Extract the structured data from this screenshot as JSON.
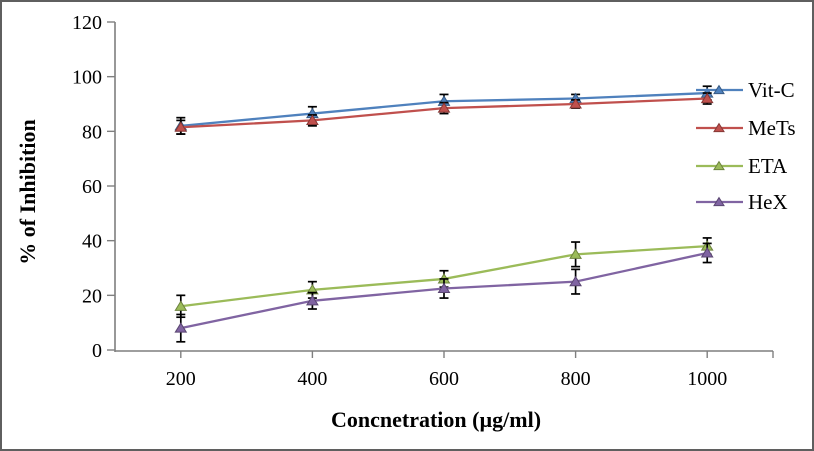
{
  "figure": {
    "background": "#ffffff",
    "border_color": "#5f5f5f"
  },
  "chart_data": {
    "type": "line",
    "title": "",
    "xlabel": "Concnetration (µg/ml)",
    "ylabel": "% of Inhibition",
    "categories": [
      "200",
      "400",
      "600",
      "800",
      "1000"
    ],
    "ylim": [
      0,
      120
    ],
    "ytick_step": 20,
    "ytick_labels": [
      "0",
      "20",
      "40",
      "60",
      "80",
      "100",
      "120"
    ],
    "grid": false,
    "legend_position": "right",
    "axis_color": "#7f7f7f",
    "text_color": "#000000",
    "error_bar_color": "#000000",
    "marker": "triangle-up",
    "series": [
      {
        "name": "Vit-C",
        "color": "#4f81bd",
        "values": [
          82,
          86.5,
          91,
          92,
          94
        ],
        "errors": [
          3,
          2.5,
          2.5,
          1.5,
          2.5
        ]
      },
      {
        "name": "MeTs",
        "color": "#c0504d",
        "values": [
          81.5,
          84,
          88.5,
          90,
          92
        ],
        "errors": [
          2.5,
          2,
          2,
          1.5,
          2
        ]
      },
      {
        "name": "ETA",
        "color": "#9bbb59",
        "values": [
          16,
          22,
          26,
          35,
          38
        ],
        "errors": [
          4,
          3,
          3,
          4.5,
          3
        ]
      },
      {
        "name": "HeX",
        "color": "#8064a2",
        "values": [
          8,
          18,
          22.5,
          25,
          35.5
        ],
        "errors": [
          5,
          3,
          3.5,
          4.5,
          3.5
        ]
      }
    ]
  }
}
